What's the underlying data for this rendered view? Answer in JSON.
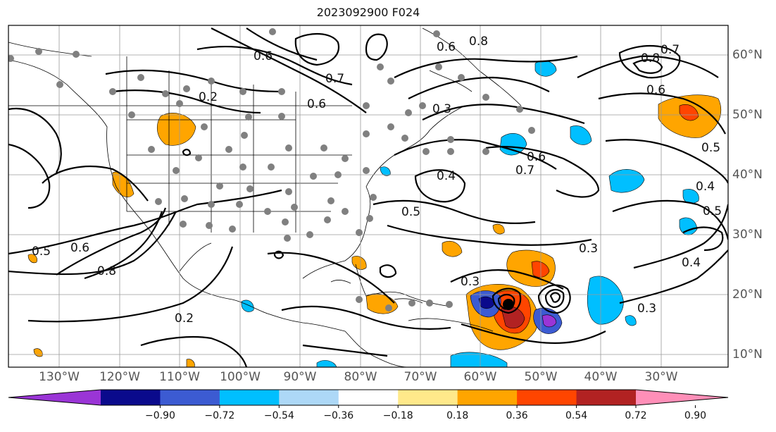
{
  "title": "2023092900 F024",
  "longitude_labels": [
    "130°W",
    "120°W",
    "110°W",
    "100°W",
    "90°W",
    "80°W",
    "70°W",
    "60°W",
    "50°W",
    "40°W",
    "30°W"
  ],
  "latitude_labels": [
    "60°N",
    "50°N",
    "40°N",
    "30°N",
    "20°N",
    "10°N"
  ],
  "colorbar": {
    "tick_labels": [
      "−0.90",
      "−0.72",
      "−0.54",
      "−0.36",
      "−0.18",
      "0.18",
      "0.36",
      "0.54",
      "0.72",
      "0.90"
    ],
    "colors": [
      "#9a35d6",
      "#0a0a8c",
      "#3c5bd2",
      "#00bfff",
      "#add8f7",
      "#ffffff",
      "#ffe98a",
      "#ffa500",
      "#ff4500",
      "#b22222",
      "#ff8fb8"
    ]
  },
  "contour_labels": [
    "0.2",
    "0.6",
    "0.7",
    "0.6",
    "0.8",
    "0.6",
    "0.3",
    "0.4",
    "0.6",
    "0.7",
    "0.5",
    "0.5",
    "0.6",
    "0.8",
    "0.3",
    "0.3",
    "0.2",
    "0.4",
    "0.5",
    "0.4",
    "0.3",
    "0.8",
    "0.7",
    "0.6",
    "0.5"
  ],
  "colors": {
    "stipple": "#808080",
    "contour": "#000000",
    "grid": "#9a9a9a"
  }
}
